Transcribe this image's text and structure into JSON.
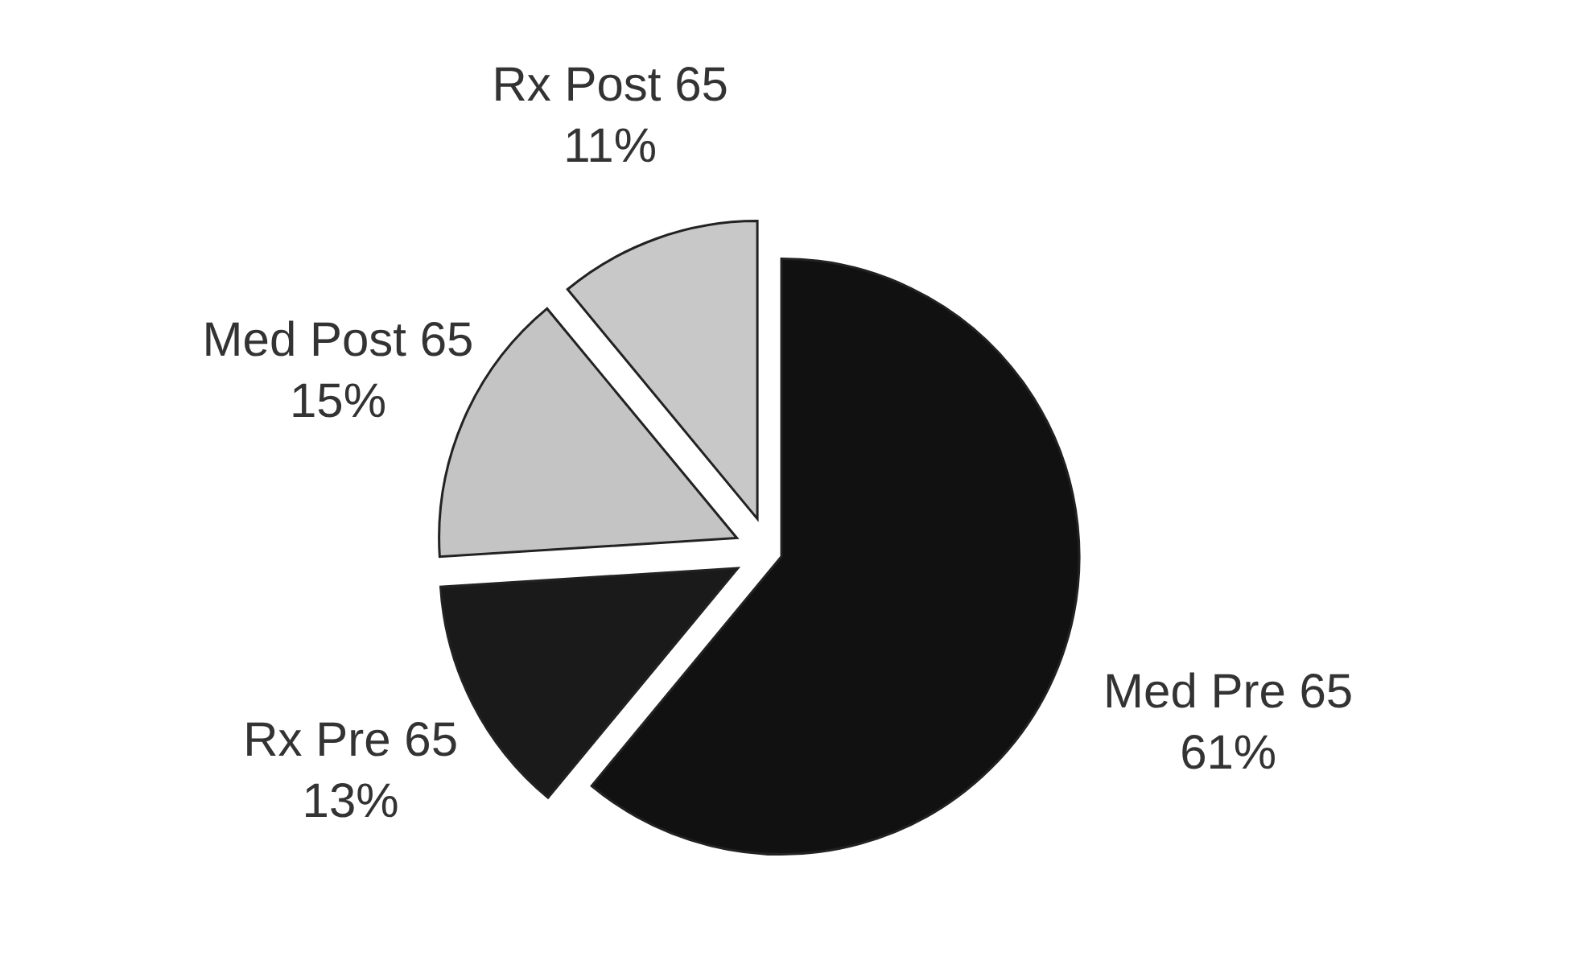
{
  "chart_data": {
    "type": "pie",
    "categories": [
      "Med Pre 65",
      "Rx Pre 65",
      "Med Post 65",
      "Rx Post 65"
    ],
    "values": [
      61,
      13,
      15,
      11
    ],
    "value_labels": [
      "61%",
      "13%",
      "15%",
      "11%"
    ],
    "colors": [
      "#111111",
      "#1a1a1a",
      "#c4c4c4",
      "#c8c8c8"
    ]
  }
}
